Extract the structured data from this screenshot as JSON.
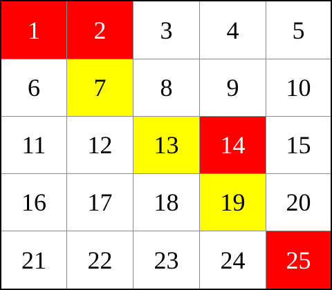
{
  "board": {
    "rows": 5,
    "cols": 5,
    "colors": {
      "red": "#ff0000",
      "yellow": "#ffff00",
      "white": "#ffffff"
    },
    "cells": [
      {
        "number": "1",
        "color": "red"
      },
      {
        "number": "2",
        "color": "red"
      },
      {
        "number": "3",
        "color": "white"
      },
      {
        "number": "4",
        "color": "white"
      },
      {
        "number": "5",
        "color": "white"
      },
      {
        "number": "6",
        "color": "white"
      },
      {
        "number": "7",
        "color": "yellow"
      },
      {
        "number": "8",
        "color": "white"
      },
      {
        "number": "9",
        "color": "white"
      },
      {
        "number": "10",
        "color": "white"
      },
      {
        "number": "11",
        "color": "white"
      },
      {
        "number": "12",
        "color": "white"
      },
      {
        "number": "13",
        "color": "yellow"
      },
      {
        "number": "14",
        "color": "red"
      },
      {
        "number": "15",
        "color": "white"
      },
      {
        "number": "16",
        "color": "white"
      },
      {
        "number": "17",
        "color": "white"
      },
      {
        "number": "18",
        "color": "white"
      },
      {
        "number": "19",
        "color": "yellow"
      },
      {
        "number": "20",
        "color": "white"
      },
      {
        "number": "21",
        "color": "white"
      },
      {
        "number": "22",
        "color": "white"
      },
      {
        "number": "23",
        "color": "white"
      },
      {
        "number": "24",
        "color": "white"
      },
      {
        "number": "25",
        "color": "red"
      }
    ]
  }
}
